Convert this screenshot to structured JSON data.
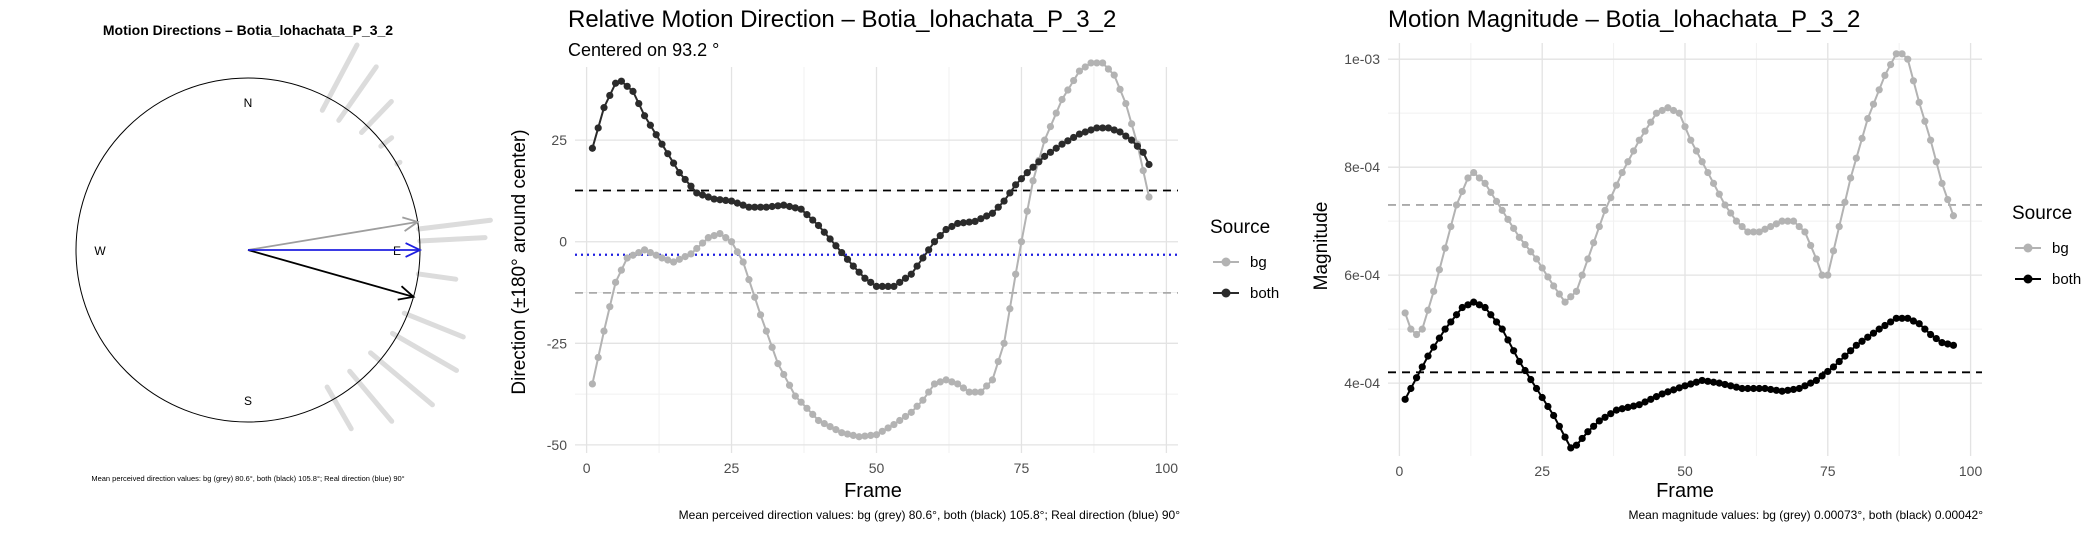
{
  "chart_data": [
    {
      "type": "polar",
      "title": "Motion Directions – Botia_lohachata_P_3_2",
      "compass_labels": {
        "north": "N",
        "south": "S",
        "east": "E",
        "west": "W"
      },
      "caption": "Mean perceived direction values: bg (grey) 80.6°, both (black) 105.8°; Real direction (blue) 90°",
      "arrows": [
        {
          "name": "bg",
          "angle_deg": 80.6,
          "color": "#9e9e9e"
        },
        {
          "name": "both",
          "angle_deg": 105.8,
          "color": "#000000"
        },
        {
          "name": "real",
          "angle_deg": 90,
          "color": "#1f1fe0"
        }
      ],
      "rays": [
        {
          "angle_deg": 28,
          "start": 0.92,
          "end": 1.35
        },
        {
          "angle_deg": 35,
          "start": 0.92,
          "end": 1.3
        },
        {
          "angle_deg": 44,
          "start": 0.95,
          "end": 1.2
        },
        {
          "angle_deg": 52,
          "start": 0.98,
          "end": 1.06
        },
        {
          "angle_deg": 60,
          "start": 1.0,
          "end": 1.02
        },
        {
          "angle_deg": 83,
          "start": 1.0,
          "end": 1.42
        },
        {
          "angle_deg": 87,
          "start": 1.0,
          "end": 1.38
        },
        {
          "angle_deg": 98,
          "start": 1.0,
          "end": 1.22
        },
        {
          "angle_deg": 112,
          "start": 0.98,
          "end": 1.35
        },
        {
          "angle_deg": 120,
          "start": 0.97,
          "end": 1.4
        },
        {
          "angle_deg": 130,
          "start": 0.93,
          "end": 1.4
        },
        {
          "angle_deg": 140,
          "start": 0.92,
          "end": 1.3
        },
        {
          "angle_deg": 150,
          "start": 0.92,
          "end": 1.2
        }
      ]
    },
    {
      "type": "line",
      "title": "Relative Motion Direction – Botia_lohachata_P_3_2",
      "subtitle": "Centered on  93.2 °",
      "xlabel": "Frame",
      "ylabel": "Direction (±180° around center)",
      "caption": "Mean perceived direction values: bg (grey) 80.6°, both (black) 105.8°; Real direction (blue) 90°",
      "xlim": [
        -2,
        102
      ],
      "ylim": [
        -52,
        43
      ],
      "xticks": [
        0,
        25,
        50,
        75,
        100
      ],
      "yticks": [
        -50,
        -25,
        0,
        25
      ],
      "grid": true,
      "legend": {
        "title": "Source",
        "position": "right",
        "items": [
          "bg",
          "both"
        ]
      },
      "hlines": [
        {
          "label": "both mean",
          "y": 12.6,
          "color": "#000000",
          "style": "dashed"
        },
        {
          "label": "bg mean",
          "y": -12.6,
          "color": "#aaaaaa",
          "style": "dashed"
        },
        {
          "label": "real direction",
          "y": -3.2,
          "color": "#1f1fe0",
          "style": "dotted"
        }
      ],
      "series": [
        {
          "name": "bg",
          "color": "#b3b3b3",
          "x_range": [
            1,
            97
          ],
          "knots": [
            [
              1,
              -35
            ],
            [
              3,
              -22
            ],
            [
              5,
              -10
            ],
            [
              7,
              -4
            ],
            [
              10,
              -2
            ],
            [
              13,
              -4
            ],
            [
              15,
              -5
            ],
            [
              18,
              -3
            ],
            [
              21,
              1
            ],
            [
              23,
              2
            ],
            [
              25,
              0
            ],
            [
              27,
              -5
            ],
            [
              30,
              -18
            ],
            [
              33,
              -30
            ],
            [
              36,
              -38
            ],
            [
              40,
              -44
            ],
            [
              44,
              -47
            ],
            [
              47,
              -48
            ],
            [
              50,
              -47.5
            ],
            [
              53,
              -45
            ],
            [
              56,
              -42
            ],
            [
              58,
              -39
            ],
            [
              60,
              -35
            ],
            [
              62,
              -34
            ],
            [
              64,
              -35
            ],
            [
              66,
              -37
            ],
            [
              68,
              -37
            ],
            [
              70,
              -34
            ],
            [
              72,
              -25
            ],
            [
              74,
              -8
            ],
            [
              75,
              0
            ],
            [
              77,
              15
            ],
            [
              79,
              25
            ],
            [
              82,
              35
            ],
            [
              85,
              42
            ],
            [
              87,
              44
            ],
            [
              89,
              44
            ],
            [
              91,
              41
            ],
            [
              93,
              34
            ],
            [
              95,
              24
            ],
            [
              97,
              11
            ]
          ]
        },
        {
          "name": "both",
          "color": "#2b2b2b",
          "x_range": [
            1,
            97
          ],
          "knots": [
            [
              1,
              23
            ],
            [
              3,
              33
            ],
            [
              5,
              39
            ],
            [
              6,
              39.5
            ],
            [
              8,
              37
            ],
            [
              10,
              31
            ],
            [
              13,
              24
            ],
            [
              16,
              17
            ],
            [
              19,
              12
            ],
            [
              22,
              10.5
            ],
            [
              25,
              10
            ],
            [
              28,
              8.5
            ],
            [
              31,
              8.5
            ],
            [
              34,
              9
            ],
            [
              37,
              8
            ],
            [
              40,
              4
            ],
            [
              43,
              -1
            ],
            [
              46,
              -6
            ],
            [
              48,
              -9
            ],
            [
              50,
              -11
            ],
            [
              53,
              -11
            ],
            [
              56,
              -8
            ],
            [
              58,
              -4
            ],
            [
              60,
              0
            ],
            [
              62,
              3
            ],
            [
              64,
              4.5
            ],
            [
              67,
              5
            ],
            [
              70,
              7
            ],
            [
              72,
              10
            ],
            [
              74,
              14
            ],
            [
              76,
              17
            ],
            [
              79,
              21
            ],
            [
              82,
              24
            ],
            [
              85,
              26.5
            ],
            [
              88,
              28
            ],
            [
              90,
              28
            ],
            [
              92,
              27
            ],
            [
              94,
              25
            ],
            [
              96,
              22
            ],
            [
              97,
              19
            ]
          ]
        }
      ]
    },
    {
      "type": "line",
      "title": "Motion Magnitude – Botia_lohachata_P_3_2",
      "xlabel": "Frame",
      "ylabel": "Magnitude",
      "caption": "Mean magnitude values: bg (grey) 0.00073°, both (black) 0.00042°",
      "xlim": [
        -2,
        102
      ],
      "ylim": [
        0.000265,
        0.00103
      ],
      "xticks": [
        0,
        25,
        50,
        75,
        100
      ],
      "yticks": [
        0.0004,
        0.0006,
        0.0008,
        0.001
      ],
      "yticklabels": [
        "4e-04",
        "6e-04",
        "8e-04",
        "1e-03"
      ],
      "grid": true,
      "legend": {
        "title": "Source",
        "position": "right",
        "items": [
          "bg",
          "both"
        ]
      },
      "hlines": [
        {
          "label": "bg mean",
          "y": 0.00073,
          "color": "#aaaaaa",
          "style": "dashed"
        },
        {
          "label": "both mean",
          "y": 0.00042,
          "color": "#000000",
          "style": "dashed"
        }
      ],
      "series": [
        {
          "name": "bg",
          "color": "#b3b3b3",
          "x_range": [
            1,
            97
          ],
          "knots": [
            [
              1,
              0.00053
            ],
            [
              2,
              0.0005
            ],
            [
              3,
              0.00049
            ],
            [
              4,
              0.0005
            ],
            [
              6,
              0.00057
            ],
            [
              8,
              0.00065
            ],
            [
              10,
              0.00073
            ],
            [
              12,
              0.00078
            ],
            [
              13,
              0.00079
            ],
            [
              15,
              0.00077
            ],
            [
              18,
              0.00072
            ],
            [
              21,
              0.00067
            ],
            [
              24,
              0.00063
            ],
            [
              27,
              0.00058
            ],
            [
              29,
              0.00055
            ],
            [
              31,
              0.00057
            ],
            [
              33,
              0.00063
            ],
            [
              36,
              0.00072
            ],
            [
              39,
              0.00079
            ],
            [
              42,
              0.00085
            ],
            [
              45,
              0.0009
            ],
            [
              47,
              0.00091
            ],
            [
              49,
              0.0009
            ],
            [
              51,
              0.00085
            ],
            [
              54,
              0.00079
            ],
            [
              57,
              0.00073
            ],
            [
              59,
              0.0007
            ],
            [
              61,
              0.00068
            ],
            [
              63,
              0.00068
            ],
            [
              65,
              0.00069
            ],
            [
              67,
              0.0007
            ],
            [
              69,
              0.0007
            ],
            [
              71,
              0.00068
            ],
            [
              73,
              0.00063
            ],
            [
              74,
              0.0006
            ],
            [
              75,
              0.0006
            ],
            [
              77,
              0.00069
            ],
            [
              79,
              0.00078
            ],
            [
              82,
              0.00089
            ],
            [
              85,
              0.00097
            ],
            [
              87,
              0.00101
            ],
            [
              88,
              0.00101
            ],
            [
              89,
              0.001
            ],
            [
              91,
              0.00092
            ],
            [
              93,
              0.00085
            ],
            [
              95,
              0.00077
            ],
            [
              97,
              0.00071
            ]
          ]
        },
        {
          "name": "both",
          "color": "#000000",
          "x_range": [
            1,
            97
          ],
          "knots": [
            [
              1,
              0.00037
            ],
            [
              3,
              0.00041
            ],
            [
              5,
              0.00045
            ],
            [
              8,
              0.0005
            ],
            [
              11,
              0.00054
            ],
            [
              13,
              0.00055
            ],
            [
              15,
              0.00054
            ],
            [
              18,
              0.0005
            ],
            [
              21,
              0.00044
            ],
            [
              24,
              0.00039
            ],
            [
              27,
              0.00034
            ],
            [
              29,
              0.0003
            ],
            [
              30,
              0.00028
            ],
            [
              31,
              0.000285
            ],
            [
              33,
              0.00031
            ],
            [
              35,
              0.00033
            ],
            [
              38,
              0.00035
            ],
            [
              42,
              0.00036
            ],
            [
              46,
              0.00038
            ],
            [
              50,
              0.000395
            ],
            [
              53,
              0.000405
            ],
            [
              56,
              0.0004
            ],
            [
              60,
              0.00039
            ],
            [
              64,
              0.00039
            ],
            [
              67,
              0.000385
            ],
            [
              70,
              0.00039
            ],
            [
              73,
              0.000405
            ],
            [
              76,
              0.00043
            ],
            [
              80,
              0.00047
            ],
            [
              84,
              0.0005
            ],
            [
              87,
              0.00052
            ],
            [
              89,
              0.00052
            ],
            [
              91,
              0.00051
            ],
            [
              93,
              0.00049
            ],
            [
              95,
              0.000475
            ],
            [
              97,
              0.00047
            ]
          ]
        }
      ]
    }
  ]
}
